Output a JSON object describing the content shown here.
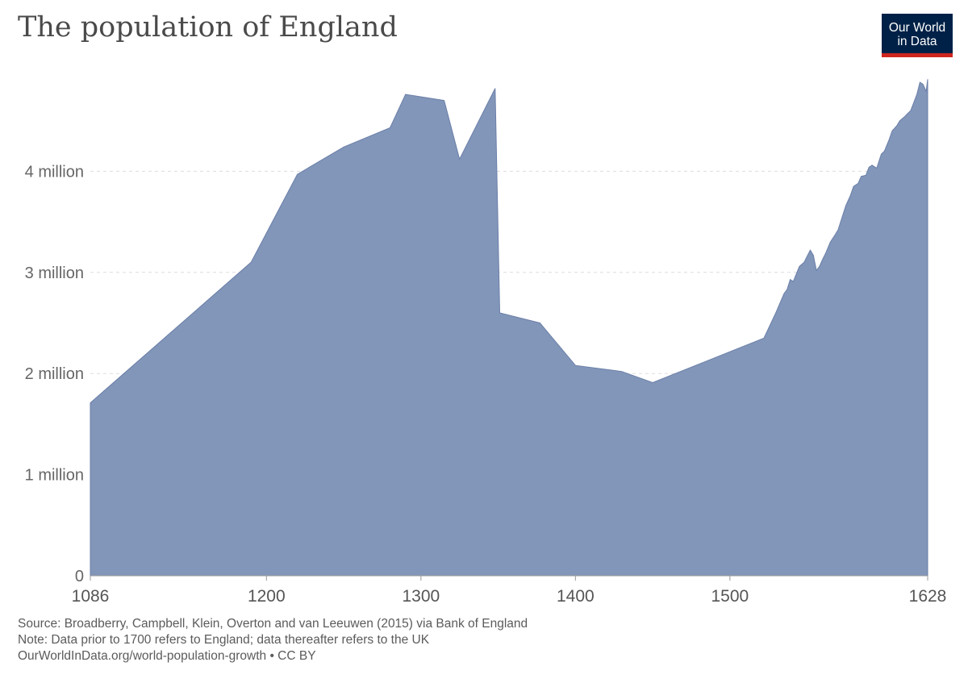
{
  "title": "The population of England",
  "logo": {
    "line1": "Our World",
    "line2": "in Data",
    "bg_color": "#002147",
    "accent_color": "#ce261e"
  },
  "chart_data": {
    "type": "area",
    "title": "The population of England",
    "xlabel": "",
    "ylabel": "",
    "xlim": [
      1086,
      1628
    ],
    "ylim": [
      0,
      5000000
    ],
    "grid": true,
    "legend": "none",
    "fill_color": "#8296b9",
    "line_color": "#6b7fa8",
    "y_ticks": [
      {
        "value": 0,
        "label": "0"
      },
      {
        "value": 1000000,
        "label": "1 million"
      },
      {
        "value": 2000000,
        "label": "2 million"
      },
      {
        "value": 3000000,
        "label": "3 million"
      },
      {
        "value": 4000000,
        "label": "4 million"
      }
    ],
    "x_ticks": [
      {
        "value": 1086,
        "label": "1086"
      },
      {
        "value": 1200,
        "label": "1200"
      },
      {
        "value": 1300,
        "label": "1300"
      },
      {
        "value": 1400,
        "label": "1400"
      },
      {
        "value": 1500,
        "label": "1500"
      },
      {
        "value": 1628,
        "label": "1628"
      }
    ],
    "series": [
      {
        "x": [
          1086,
          1190,
          1220,
          1250,
          1280,
          1290,
          1315,
          1325,
          1348,
          1351,
          1377,
          1400,
          1430,
          1450,
          1522,
          1530,
          1535,
          1537,
          1539,
          1541,
          1545,
          1548,
          1550,
          1552,
          1554,
          1556,
          1558,
          1560,
          1562,
          1565,
          1568,
          1570,
          1575,
          1578,
          1580,
          1583,
          1585,
          1588,
          1590,
          1592,
          1595,
          1598,
          1600,
          1603,
          1605,
          1608,
          1610,
          1613,
          1615,
          1617,
          1619,
          1621,
          1623,
          1625,
          1627,
          1628
        ],
        "y": [
          1710000,
          3100000,
          3970000,
          4240000,
          4430000,
          4760000,
          4700000,
          4120000,
          4820000,
          2600000,
          2500000,
          2080000,
          2020000,
          1910000,
          2350000,
          2610000,
          2790000,
          2830000,
          2930000,
          2910000,
          3060000,
          3100000,
          3160000,
          3220000,
          3170000,
          3020000,
          3060000,
          3130000,
          3190000,
          3300000,
          3370000,
          3420000,
          3660000,
          3760000,
          3850000,
          3880000,
          3950000,
          3960000,
          4040000,
          4060000,
          4030000,
          4170000,
          4200000,
          4310000,
          4400000,
          4450000,
          4500000,
          4540000,
          4570000,
          4600000,
          4680000,
          4760000,
          4880000,
          4860000,
          4790000,
          4910000
        ]
      }
    ]
  },
  "footer": {
    "source": "Source: Broadberry, Campbell, Klein, Overton and van Leeuwen (2015) via Bank of England",
    "note": "Note: Data prior to 1700 refers to England; data thereafter refers to the UK",
    "url": "OurWorldInData.org/world-population-growth • CC BY"
  }
}
